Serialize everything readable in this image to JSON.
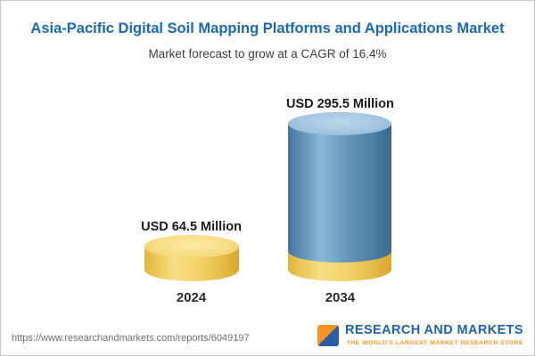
{
  "header": {
    "title": "Asia-Pacific Digital Soil Mapping Platforms and Applications Market",
    "subtitle": "Market forecast to grow at a CAGR of 16.4%"
  },
  "chart_data": {
    "type": "bar",
    "title": "Asia-Pacific Digital Soil Mapping Platforms and Applications Market",
    "subtitle": "Market forecast to grow at a CAGR of 16.4%",
    "categories": [
      "2024",
      "2034"
    ],
    "values": [
      64.5,
      295.5
    ],
    "value_labels": [
      "USD 64.5 Million",
      "USD 295.5 Million"
    ],
    "unit": "USD Million",
    "cagr": "16.4%",
    "xlabel": "",
    "ylabel": "",
    "ylim": [
      0,
      300
    ],
    "grid": false,
    "legend": "none",
    "bar_style": "3d-cylinder",
    "bar_colors": {
      "2024": "#F2D369",
      "2034": "#5F93B9",
      "2034_base": "#F2D369"
    }
  },
  "footer": {
    "url": "https://www.researchandmarkets.com/reports/6049197",
    "logo": {
      "line1": "RESEARCH AND MARKETS",
      "line2": "THE WORLD'S LARGEST MARKET RESEARCH STORE"
    }
  }
}
